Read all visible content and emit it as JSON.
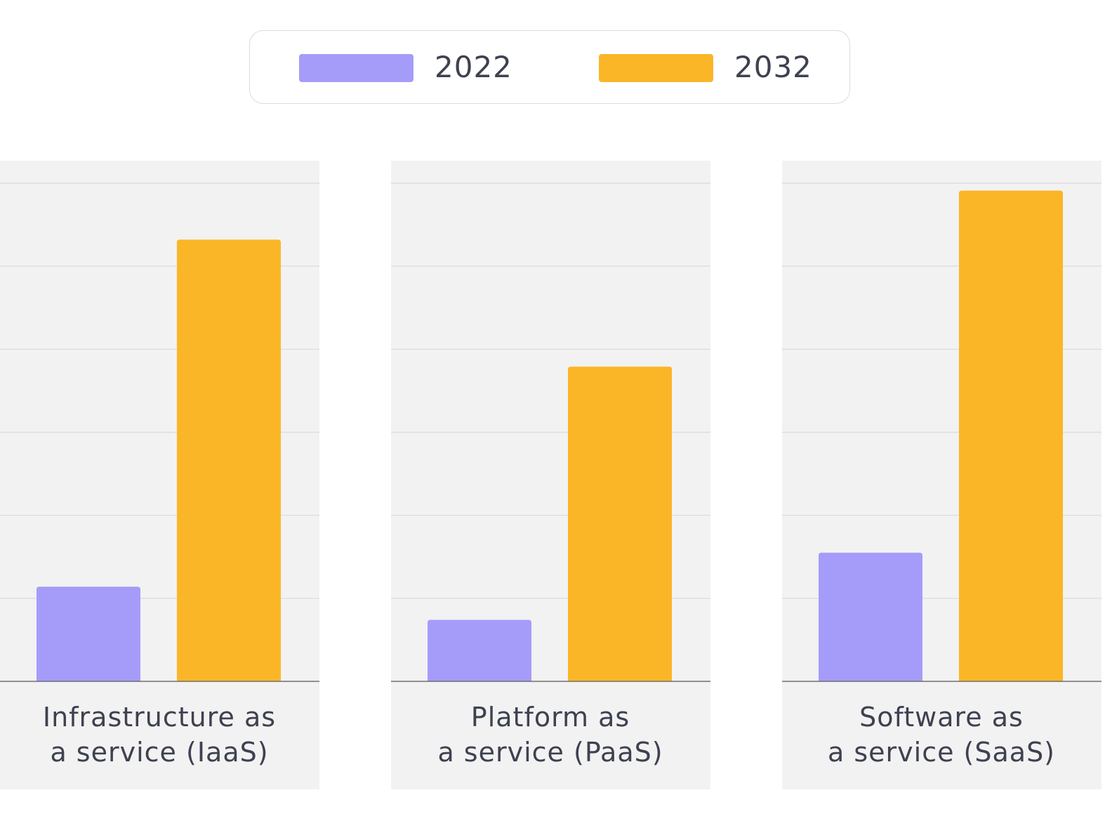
{
  "chart_data": {
    "type": "bar",
    "title": "",
    "xlabel": "",
    "ylabel": "",
    "ylim": [
      0,
      6
    ],
    "grid": true,
    "legend_position": "top-center",
    "categories": [
      [
        "Infrastructure as",
        "a service (IaaS)"
      ],
      [
        "Platform as",
        "a service (PaaS)"
      ],
      [
        "Software as",
        "a service (SaaS)"
      ]
    ],
    "series": [
      {
        "name": "2022",
        "color": "#a59cfa",
        "values": [
          1.14,
          0.74,
          1.55
        ]
      },
      {
        "name": "2032",
        "color": "#fbb627",
        "values": [
          5.32,
          3.79,
          5.91
        ]
      }
    ]
  },
  "colors": {
    "panel_background": "#f2f2f2",
    "gridline": "#d9d9d9",
    "baseline": "#6f6f6f",
    "text": "#3e4150"
  }
}
